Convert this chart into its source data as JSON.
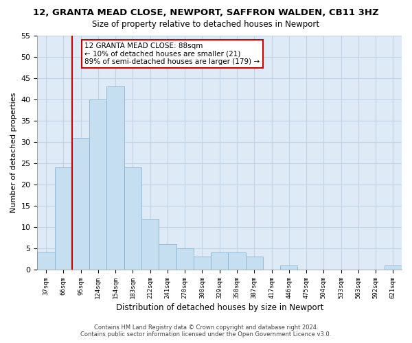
{
  "title": "12, GRANTA MEAD CLOSE, NEWPORT, SAFFRON WALDEN, CB11 3HZ",
  "subtitle": "Size of property relative to detached houses in Newport",
  "xlabel": "Distribution of detached houses by size in Newport",
  "ylabel": "Number of detached properties",
  "bar_labels": [
    "37sqm",
    "66sqm",
    "95sqm",
    "124sqm",
    "154sqm",
    "183sqm",
    "212sqm",
    "241sqm",
    "270sqm",
    "300sqm",
    "329sqm",
    "358sqm",
    "387sqm",
    "417sqm",
    "446sqm",
    "475sqm",
    "504sqm",
    "533sqm",
    "563sqm",
    "592sqm",
    "621sqm"
  ],
  "bar_values": [
    4,
    24,
    31,
    40,
    43,
    24,
    12,
    6,
    5,
    3,
    4,
    4,
    3,
    0,
    1,
    0,
    0,
    0,
    0,
    0,
    1
  ],
  "bar_color": "#c6dff0",
  "bar_edge_color": "#8ab4d4",
  "vline_color": "#cc0000",
  "ylim": [
    0,
    55
  ],
  "yticks": [
    0,
    5,
    10,
    15,
    20,
    25,
    30,
    35,
    40,
    45,
    50,
    55
  ],
  "annotation_line1": "12 GRANTA MEAD CLOSE: 88sqm",
  "annotation_line2": "← 10% of detached houses are smaller (21)",
  "annotation_line3": "89% of semi-detached houses are larger (179) →",
  "annotation_box_color": "#ffffff",
  "annotation_box_edgecolor": "#cc0000",
  "footer_line1": "Contains HM Land Registry data © Crown copyright and database right 2024.",
  "footer_line2": "Contains public sector information licensed under the Open Government Licence v3.0.",
  "background_color": "#ffffff",
  "plot_bg_color": "#deeaf5",
  "grid_color": "#c0d4e8",
  "vline_bar_index": 2
}
